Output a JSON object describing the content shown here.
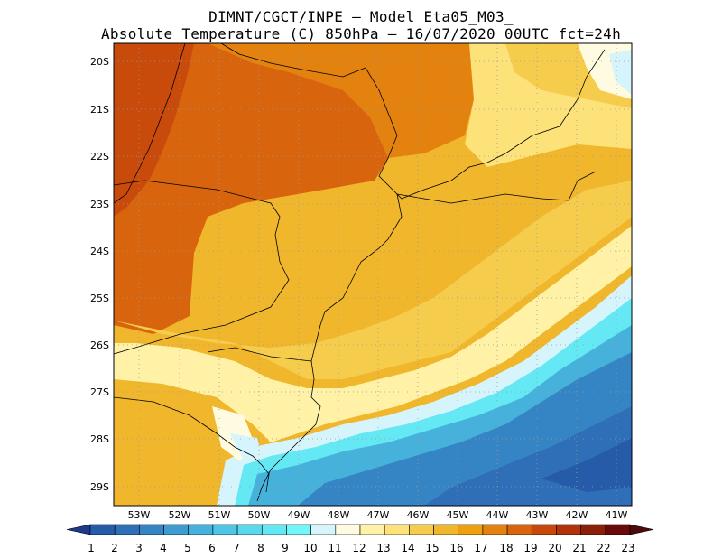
{
  "header": {
    "title_line1": "DIMNT/CGCT/INPE –  Model Eta05_M03_",
    "title_line2": "Absolute Temperature (C) 850hPa –  16/07/2020 00UTC fct=24h"
  },
  "map": {
    "lat_labels": [
      "20S",
      "21S",
      "22S",
      "23S",
      "24S",
      "25S",
      "26S",
      "27S",
      "28S",
      "29S"
    ],
    "lon_labels": [
      "53W",
      "52W",
      "51W",
      "50W",
      "49W",
      "48W",
      "47W",
      "46W",
      "45W",
      "44W",
      "43W",
      "42W",
      "41W"
    ],
    "grid": true
  },
  "colorbar": {
    "labels": [
      "1",
      "2",
      "3",
      "4",
      "5",
      "6",
      "7",
      "8",
      "9",
      "10",
      "11",
      "12",
      "13",
      "14",
      "15",
      "16",
      "17",
      "18",
      "19",
      "20",
      "21",
      "22",
      "23"
    ],
    "colors": [
      "#1f3a8c",
      "#255ba8",
      "#2e6fb8",
      "#3585c4",
      "#3d9cd0",
      "#46b2dc",
      "#50c6e6",
      "#5ad8ee",
      "#64e8f4",
      "#72f6fa",
      "#d6f4fb",
      "#fffbe0",
      "#fff2a6",
      "#fde27a",
      "#f6cc4d",
      "#f0b62c",
      "#eda010",
      "#e3820f",
      "#d8650e",
      "#c8480c",
      "#b2320a",
      "#8c1f08",
      "#6a0a0a",
      "#4c0a0a"
    ]
  }
}
